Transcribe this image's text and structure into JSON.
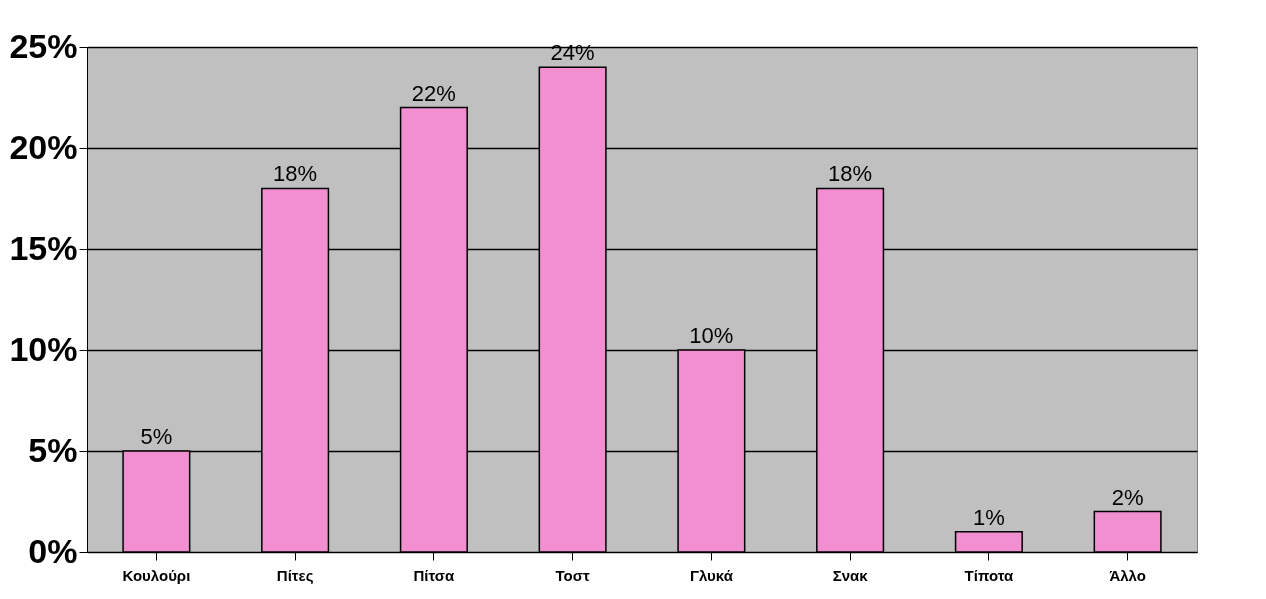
{
  "chart_data": {
    "type": "bar",
    "categories": [
      "Κουλούρι",
      "Πίτες",
      "Πίτσα",
      "Τοστ",
      "Γλυκά",
      "Σνακ",
      "Τίποτα",
      "Άλλο"
    ],
    "values": [
      5,
      18,
      22,
      24,
      10,
      18,
      1,
      2
    ],
    "value_labels": [
      "5%",
      "18%",
      "22%",
      "24%",
      "10%",
      "18%",
      "1%",
      "2%"
    ],
    "color": "#f28fd0",
    "ylim": [
      0,
      25
    ],
    "yticks": [
      {
        "value": 0,
        "label": "0%"
      },
      {
        "value": 5,
        "label": "5%"
      },
      {
        "value": 10,
        "label": "10%"
      },
      {
        "value": 15,
        "label": "15%"
      },
      {
        "value": 20,
        "label": "20%"
      },
      {
        "value": 25,
        "label": "25%"
      }
    ],
    "grid": "y"
  }
}
